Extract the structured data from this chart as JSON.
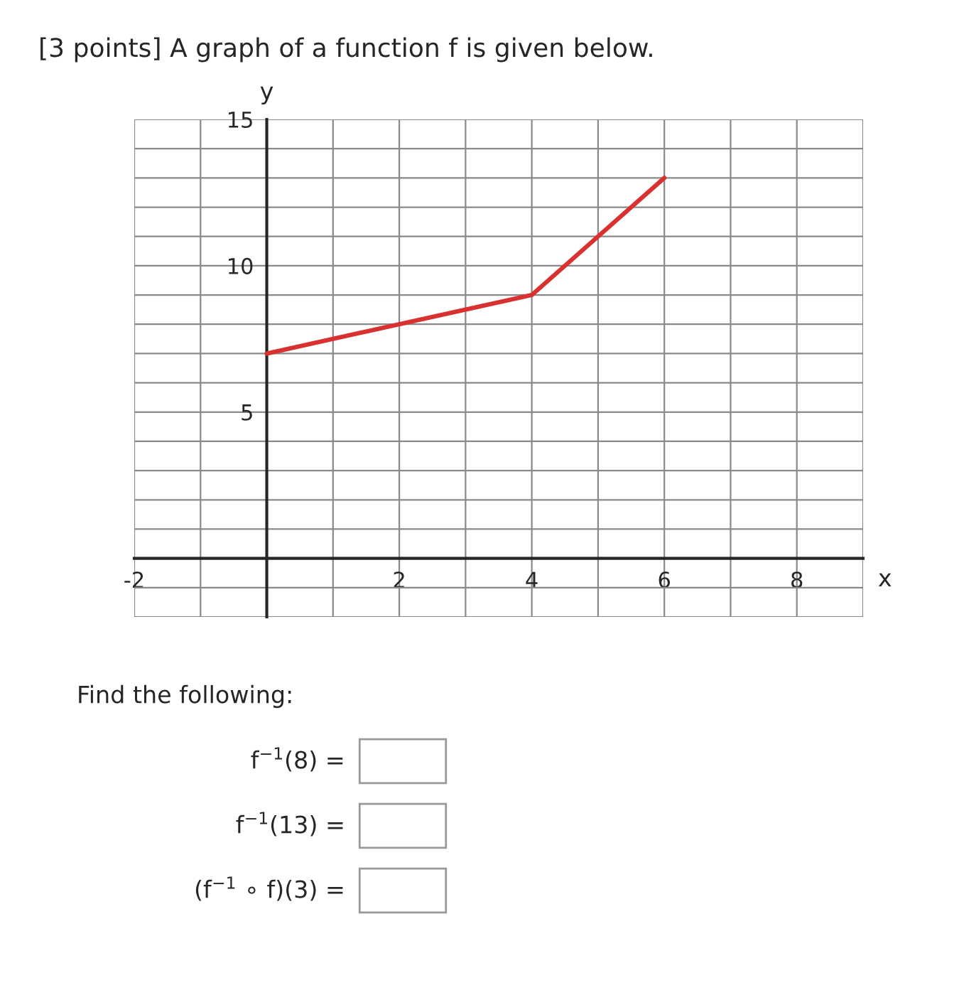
{
  "chart_data": {
    "type": "line",
    "title": "[3 points] A graph of a function f is given below.",
    "xlabel": "x",
    "ylabel": "y",
    "x": [
      0,
      4,
      6
    ],
    "series": [
      {
        "color": "#d9312f",
        "values": [
          7,
          9,
          13
        ]
      }
    ],
    "xlim": [
      -2,
      9
    ],
    "ylim": [
      -2,
      15
    ],
    "xticks": [
      -2,
      {
        "value": -1,
        "label": null
      },
      {
        "value": 0,
        "label": null
      },
      {
        "value": 1,
        "label": null
      },
      2,
      {
        "value": 3,
        "label": null
      },
      4,
      {
        "value": 5,
        "label": null
      },
      6,
      {
        "value": 7,
        "label": null
      },
      8,
      {
        "value": 9,
        "label": null
      }
    ],
    "yticks": [
      {
        "value": -2,
        "label": null
      },
      {
        "value": -1,
        "label": null
      },
      {
        "value": 0,
        "label": null
      },
      {
        "value": 1,
        "label": null
      },
      {
        "value": 2,
        "label": null
      },
      {
        "value": 3,
        "label": null
      },
      {
        "value": 4,
        "label": null
      },
      5,
      {
        "value": 6,
        "label": null
      },
      {
        "value": 7,
        "label": null
      },
      {
        "value": 8,
        "label": null
      },
      {
        "value": 9,
        "label": null
      },
      10,
      {
        "value": 11,
        "label": null
      },
      {
        "value": 12,
        "label": null
      },
      {
        "value": 13,
        "label": null
      },
      {
        "value": 14,
        "label": null
      },
      15
    ],
    "grid": true,
    "marker": "none",
    "line_style": "solid",
    "annotations": [
      "Find the following:",
      "f$^{−1}$(8) =",
      "f$^{−1}$(13) =",
      "(f$^{−1}$ ∘ f)(3) ="
    ]
  }
}
